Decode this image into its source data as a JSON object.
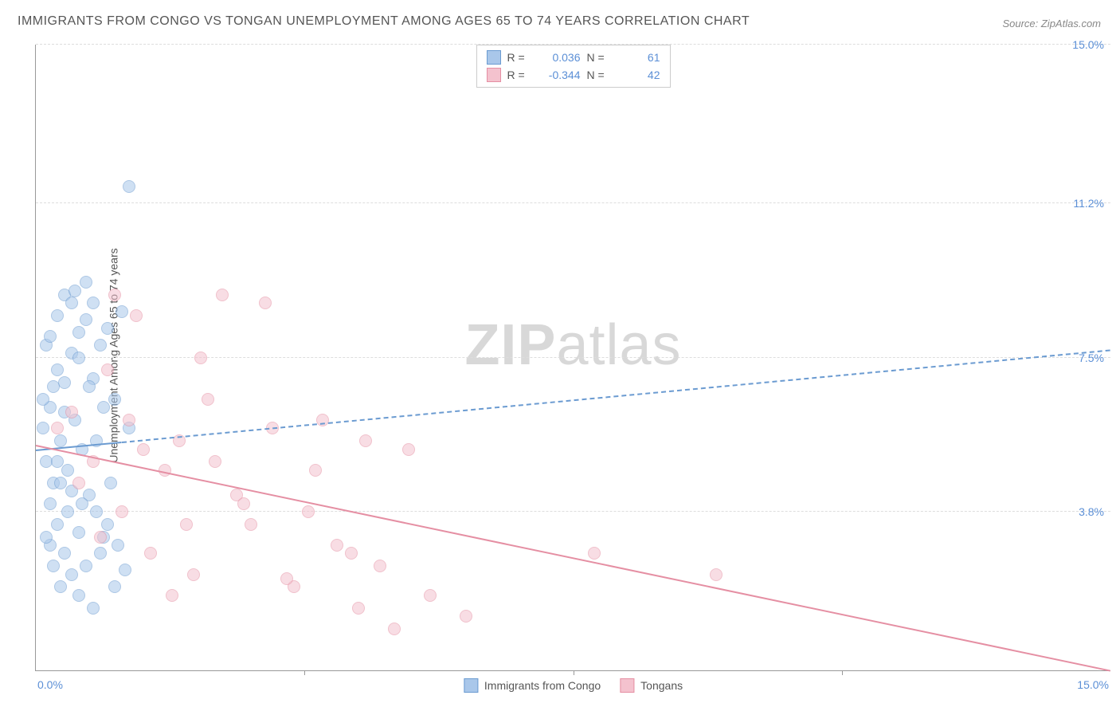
{
  "title": "IMMIGRANTS FROM CONGO VS TONGAN UNEMPLOYMENT AMONG AGES 65 TO 74 YEARS CORRELATION CHART",
  "source": "Source: ZipAtlas.com",
  "y_axis_label": "Unemployment Among Ages 65 to 74 years",
  "watermark_bold": "ZIP",
  "watermark_light": "atlas",
  "chart": {
    "type": "scatter",
    "xlim": [
      0,
      15
    ],
    "ylim": [
      0,
      15
    ],
    "y_grid_values": [
      3.8,
      7.5,
      11.2,
      15.0
    ],
    "y_tick_labels": [
      "3.8%",
      "7.5%",
      "11.2%",
      "15.0%"
    ],
    "x_tick_minor_positions": [
      3.75,
      7.5,
      11.25
    ],
    "x_left_label": "0.0%",
    "x_right_label": "15.0%",
    "background_color": "#ffffff",
    "grid_color": "#dddddd",
    "axis_color": "#999999",
    "point_radius": 8,
    "point_opacity": 0.55
  },
  "series": [
    {
      "name": "Immigrants from Congo",
      "color_fill": "#a9c7ea",
      "color_stroke": "#6b9bd1",
      "R": "0.036",
      "N": "61",
      "trend": {
        "x1": 0,
        "y1": 5.3,
        "x2": 15,
        "y2": 7.7,
        "dash": true,
        "solid_until_x": 1.2
      },
      "points": [
        [
          0.1,
          5.8
        ],
        [
          0.2,
          6.3
        ],
        [
          0.15,
          5.0
        ],
        [
          0.3,
          7.2
        ],
        [
          0.4,
          6.9
        ],
        [
          0.25,
          4.5
        ],
        [
          0.5,
          7.6
        ],
        [
          0.6,
          8.1
        ],
        [
          0.35,
          5.5
        ],
        [
          0.45,
          4.8
        ],
        [
          0.7,
          8.4
        ],
        [
          0.8,
          7.0
        ],
        [
          0.3,
          3.5
        ],
        [
          0.55,
          6.0
        ],
        [
          0.9,
          7.8
        ],
        [
          1.0,
          8.2
        ],
        [
          0.2,
          3.0
        ],
        [
          0.65,
          5.3
        ],
        [
          1.1,
          6.5
        ],
        [
          0.4,
          2.8
        ],
        [
          0.75,
          4.2
        ],
        [
          1.2,
          8.6
        ],
        [
          0.5,
          2.3
        ],
        [
          0.85,
          3.8
        ],
        [
          1.3,
          5.8
        ],
        [
          0.6,
          1.8
        ],
        [
          0.95,
          3.2
        ],
        [
          0.3,
          8.5
        ],
        [
          0.7,
          2.5
        ],
        [
          1.05,
          4.5
        ],
        [
          0.15,
          7.8
        ],
        [
          0.8,
          1.5
        ],
        [
          1.15,
          3.0
        ],
        [
          0.25,
          6.8
        ],
        [
          0.9,
          2.8
        ],
        [
          0.4,
          9.0
        ],
        [
          0.5,
          8.8
        ],
        [
          0.35,
          2.0
        ],
        [
          1.25,
          2.4
        ],
        [
          0.2,
          4.0
        ],
        [
          0.6,
          3.3
        ],
        [
          0.1,
          6.5
        ],
        [
          0.45,
          3.8
        ],
        [
          0.75,
          6.8
        ],
        [
          0.55,
          9.1
        ],
        [
          0.3,
          5.0
        ],
        [
          1.0,
          3.5
        ],
        [
          0.65,
          4.0
        ],
        [
          0.2,
          8.0
        ],
        [
          0.85,
          5.5
        ],
        [
          0.4,
          6.2
        ],
        [
          0.7,
          9.3
        ],
        [
          0.15,
          3.2
        ],
        [
          0.95,
          6.3
        ],
        [
          0.5,
          4.3
        ],
        [
          1.1,
          2.0
        ],
        [
          0.25,
          2.5
        ],
        [
          0.8,
          8.8
        ],
        [
          1.3,
          11.6
        ],
        [
          0.6,
          7.5
        ],
        [
          0.35,
          4.5
        ]
      ]
    },
    {
      "name": "Tongans",
      "color_fill": "#f4c2ce",
      "color_stroke": "#e58fa3",
      "R": "-0.344",
      "N": "42",
      "trend": {
        "x1": 0,
        "y1": 5.4,
        "x2": 15,
        "y2": 0.0,
        "dash": false
      },
      "points": [
        [
          0.3,
          5.8
        ],
        [
          0.5,
          6.2
        ],
        [
          0.8,
          5.0
        ],
        [
          1.0,
          7.2
        ],
        [
          1.3,
          6.0
        ],
        [
          1.5,
          5.3
        ],
        [
          0.6,
          4.5
        ],
        [
          1.8,
          4.8
        ],
        [
          2.0,
          5.5
        ],
        [
          1.2,
          3.8
        ],
        [
          2.3,
          7.5
        ],
        [
          2.5,
          5.0
        ],
        [
          0.9,
          3.2
        ],
        [
          2.8,
          4.2
        ],
        [
          1.6,
          2.8
        ],
        [
          3.0,
          3.5
        ],
        [
          2.2,
          2.3
        ],
        [
          3.3,
          5.8
        ],
        [
          1.4,
          8.5
        ],
        [
          3.6,
          2.0
        ],
        [
          2.6,
          9.0
        ],
        [
          3.9,
          4.8
        ],
        [
          1.9,
          1.8
        ],
        [
          4.2,
          3.0
        ],
        [
          2.4,
          6.5
        ],
        [
          4.5,
          1.5
        ],
        [
          3.2,
          8.8
        ],
        [
          4.8,
          2.5
        ],
        [
          2.9,
          4.0
        ],
        [
          5.2,
          5.3
        ],
        [
          3.5,
          2.2
        ],
        [
          5.5,
          1.8
        ],
        [
          4.0,
          6.0
        ],
        [
          1.1,
          9.0
        ],
        [
          4.4,
          2.8
        ],
        [
          6.0,
          1.3
        ],
        [
          3.8,
          3.8
        ],
        [
          7.8,
          2.8
        ],
        [
          5.0,
          1.0
        ],
        [
          9.5,
          2.3
        ],
        [
          4.6,
          5.5
        ],
        [
          2.1,
          3.5
        ]
      ]
    }
  ],
  "legend_labels": {
    "r_label": "R =",
    "n_label": "N ="
  }
}
